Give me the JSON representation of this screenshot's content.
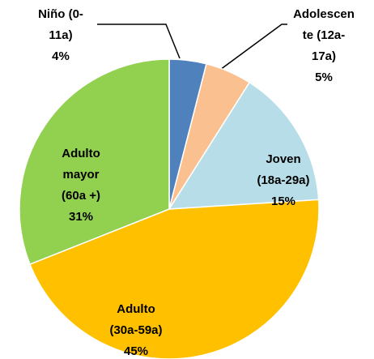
{
  "chart_data": {
    "type": "pie",
    "categories": [
      [
        "Niño (0-",
        "11a)"
      ],
      [
        "Adolescen",
        "te (12a-",
        "17a)"
      ],
      [
        "Joven",
        "(18a-29a)"
      ],
      [
        "Adulto",
        "(30a-59a)"
      ],
      [
        "Adulto",
        "mayor",
        "(60a +)"
      ]
    ],
    "values": [
      4,
      5,
      15,
      45,
      31
    ],
    "value_labels": [
      "4%",
      "5%",
      "15%",
      "45%",
      "31%"
    ],
    "colors": [
      "#4f81bd",
      "#fac090",
      "#b7dee8",
      "#ffc000",
      "#92d050"
    ]
  }
}
